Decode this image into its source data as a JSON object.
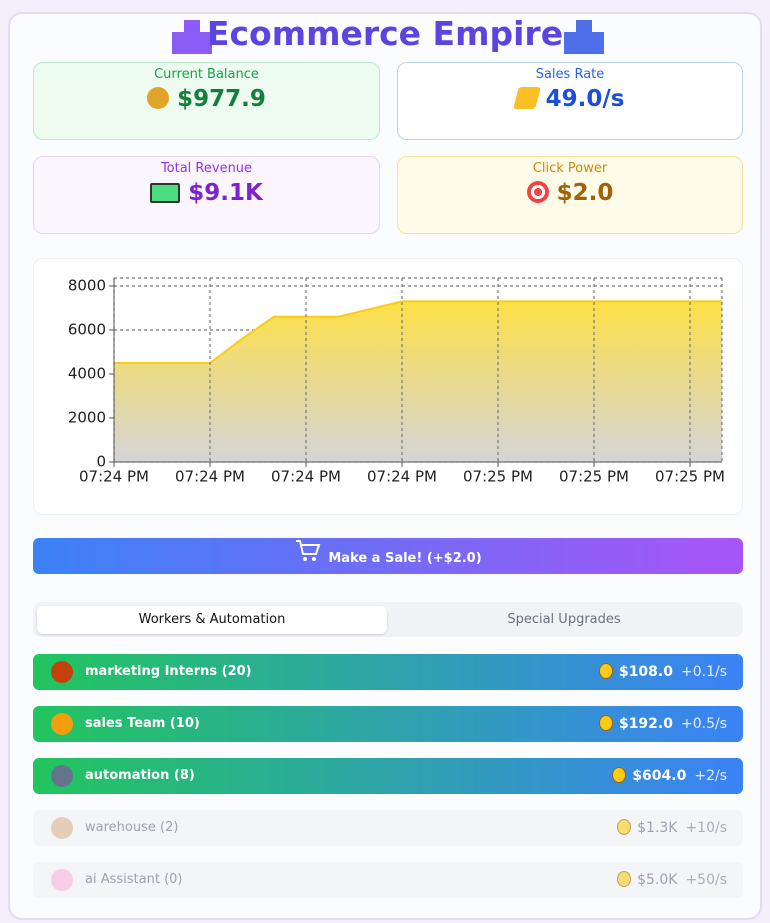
{
  "header": {
    "title": "Ecommerce Empire"
  },
  "stats": [
    {
      "label": "Current Balance",
      "value": "$977.9"
    },
    {
      "label": "Sales Rate",
      "value": "49.0/s"
    },
    {
      "label": "Total Revenue",
      "value": "$9.1K"
    },
    {
      "label": "Click Power",
      "value": "$2.0"
    }
  ],
  "chart_data": {
    "type": "area",
    "categories": [
      "07:24 PM",
      null,
      null,
      "07:24 PM",
      null,
      null,
      "07:24 PM",
      null,
      null,
      "07:24 PM",
      null,
      null,
      "07:25 PM",
      null,
      null,
      "07:25 PM",
      null,
      null,
      "07:25 PM",
      null
    ],
    "values": [
      4500,
      4500,
      4500,
      4500,
      5600,
      6600,
      6600,
      6600,
      6950,
      7300,
      7300,
      7300,
      7300,
      7300,
      7300,
      7300,
      7300,
      7300,
      7300,
      7300
    ],
    "color": "#facc15",
    "ylim": [
      0,
      8000
    ],
    "yticks": [
      0,
      2000,
      4000,
      6000,
      8000
    ],
    "grid": true
  },
  "button": {
    "label": "Make a Sale! (+$2.0)"
  },
  "tabs": [
    "Workers & Automation",
    "Special Upgrades"
  ],
  "workers": [
    {
      "name": "marketing Interns (20)",
      "cost": "$108.0",
      "rate": "+0.1/s"
    },
    {
      "name": "sales Team (10)",
      "cost": "$192.0",
      "rate": "+0.5/s"
    },
    {
      "name": "automation (8)",
      "cost": "$604.0",
      "rate": "+2/s"
    },
    {
      "name": "warehouse (2)",
      "cost": "$1.3K",
      "rate": "+10/s"
    },
    {
      "name": "ai Assistant (0)",
      "cost": "$5.0K",
      "rate": "+50/s"
    }
  ]
}
